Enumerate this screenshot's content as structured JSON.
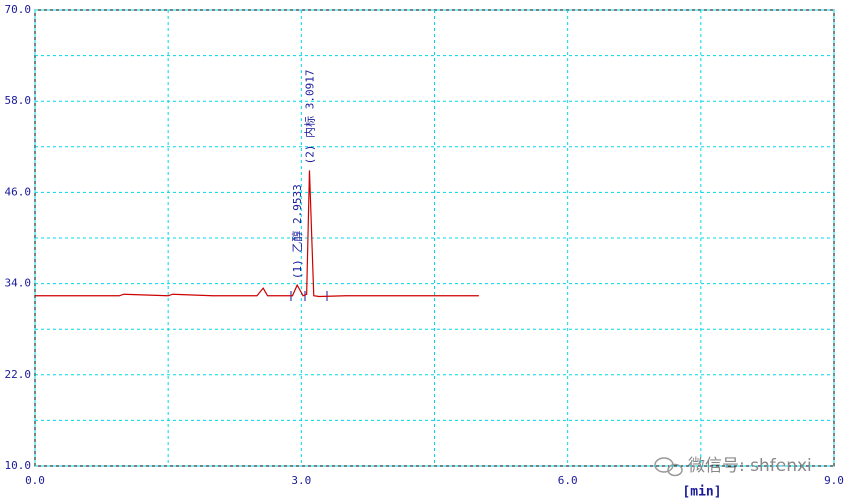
{
  "chart_data": {
    "type": "line",
    "x": [
      0,
      0.95,
      1.0,
      1.5,
      1.55,
      2.0,
      2.5,
      2.57,
      2.62,
      2.9,
      2.9533,
      3.02,
      3.06,
      3.0917,
      3.14,
      3.2,
      3.5,
      4.0,
      5.0
    ],
    "series": [
      {
        "color": "#cc0000",
        "values": [
          32.4,
          32.4,
          32.6,
          32.4,
          32.6,
          32.4,
          32.4,
          33.4,
          32.4,
          32.4,
          33.8,
          32.4,
          32.6,
          48.9,
          32.4,
          32.3,
          32.4,
          32.4,
          32.4
        ]
      }
    ],
    "xlim": [
      0,
      9
    ],
    "ylim": [
      10,
      70
    ],
    "xticks": [
      {
        "value": 0,
        "label": "0.0"
      },
      {
        "value": 3,
        "label": "3.0"
      },
      {
        "value": 6,
        "label": "6.0"
      },
      {
        "value": 9,
        "label": "9.0"
      }
    ],
    "yticks": [
      {
        "value": 10,
        "label": "10.0"
      },
      {
        "value": 22,
        "label": "22.0"
      },
      {
        "value": 34,
        "label": "34.0"
      },
      {
        "value": 46,
        "label": "46.0"
      },
      {
        "value": 58,
        "label": "58.0"
      },
      {
        "value": 70,
        "label": "70.0"
      }
    ],
    "minor_xticks": [
      1.5,
      4.5,
      7.5
    ],
    "minor_yticks": [
      16,
      28,
      40,
      52,
      64
    ],
    "grid": true,
    "xlabel": "[min]",
    "annotations": [
      {
        "text": "(1) 乙醇 2.9533",
        "x": 2.9533,
        "y": 33.8
      },
      {
        "text": "(2) 内标 3.0917",
        "x": 3.0917,
        "y": 48.9
      }
    ],
    "watermark": "微信号: shfenxi"
  }
}
